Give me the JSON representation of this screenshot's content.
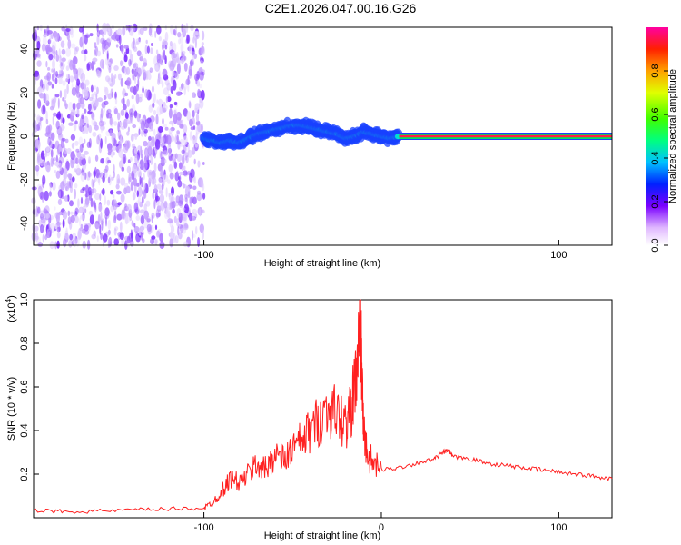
{
  "title": "C2E1.2026.047.00.16.G26",
  "chart_data": [
    {
      "type": "heatmap",
      "xlabel": "Height of straight line (km)",
      "ylabel": "Frequency (Hz)",
      "xlim": [
        -196,
        130
      ],
      "ylim": [
        -50,
        50
      ],
      "x_ticks": [
        "-100",
        "100"
      ],
      "y_ticks": [
        "40",
        "20",
        "0",
        "-20",
        "-40"
      ],
      "colorbar": {
        "label": "Normalized spectral amplitude",
        "range": [
          0,
          1
        ],
        "ticks": [
          "0.0",
          "0.2",
          "0.4",
          "0.6",
          "0.8"
        ]
      },
      "noise_region_x": [
        -196,
        -100
      ],
      "signal_track": {
        "x": [
          -100,
          -95,
          -90,
          -85,
          -80,
          -75,
          -70,
          -65,
          -60,
          -55,
          -50,
          -45,
          -40,
          -35,
          -30,
          -25,
          -20,
          -15,
          -10,
          -5,
          0,
          5,
          10,
          130
        ],
        "freq": [
          -1,
          -2,
          -3,
          -2,
          -3,
          -1,
          1,
          2,
          3,
          4,
          5,
          5,
          4,
          3,
          2,
          1,
          -1,
          0,
          2,
          1,
          0,
          -1,
          0,
          0
        ]
      },
      "steady_signal_x": [
        10,
        130
      ]
    },
    {
      "type": "line",
      "xlabel": "Height of straight line (km)",
      "ylabel": "SNR (10 * v/v)",
      "scale_label": "(x10⁴)",
      "scale_base": "(x10",
      "scale_exp": "4",
      "scale_close": ")",
      "xlim": [
        -196,
        130
      ],
      "ylim": [
        0,
        1.0
      ],
      "x_ticks": [
        "-100",
        "0",
        "100"
      ],
      "y_ticks": [
        "1.0",
        "0.8",
        "0.6",
        "0.4",
        "0.2"
      ],
      "series": [
        {
          "color": "#ff2020",
          "x": [
            -196,
            -180,
            -160,
            -140,
            -120,
            -100,
            -95,
            -90,
            -85,
            -80,
            -75,
            -70,
            -65,
            -60,
            -55,
            -50,
            -45,
            -40,
            -35,
            -30,
            -25,
            -20,
            -17,
            -15,
            -13,
            -12,
            -11,
            -10,
            -8,
            -5,
            0,
            10,
            20,
            30,
            35,
            38,
            40,
            50,
            60,
            70,
            80,
            90,
            100,
            110,
            120,
            130
          ],
          "values": [
            0.03,
            0.03,
            0.03,
            0.035,
            0.04,
            0.045,
            0.07,
            0.12,
            0.18,
            0.16,
            0.2,
            0.25,
            0.22,
            0.3,
            0.26,
            0.32,
            0.35,
            0.4,
            0.45,
            0.5,
            0.48,
            0.42,
            0.5,
            0.6,
            0.75,
            1.0,
            0.65,
            0.4,
            0.3,
            0.25,
            0.22,
            0.23,
            0.25,
            0.27,
            0.3,
            0.31,
            0.28,
            0.27,
            0.25,
            0.24,
            0.23,
            0.22,
            0.21,
            0.2,
            0.19,
            0.18
          ]
        }
      ]
    }
  ]
}
